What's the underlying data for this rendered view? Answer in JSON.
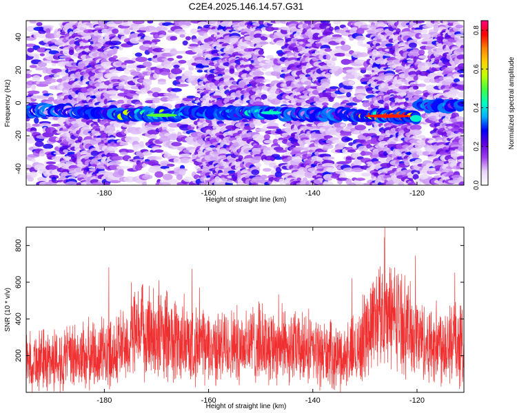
{
  "title": "C2E4.2025.146.14.57.G31",
  "chart_data": [
    {
      "type": "heatmap",
      "xlabel": "Height of straight line (km)",
      "ylabel": "Frequency (Hz)",
      "xlim": [
        -195,
        -111
      ],
      "ylim": [
        -50,
        50
      ],
      "xticks": [
        -180,
        -160,
        -140,
        -120
      ],
      "xtick_labels": [
        "-180",
        "-160",
        "-140",
        "-120"
      ],
      "yticks": [
        -40,
        -20,
        0,
        20,
        40
      ],
      "ytick_labels": [
        "-40",
        "-20",
        "0",
        "20",
        "40"
      ],
      "colorbar": {
        "label": "Normalized spectral amplitude",
        "range": [
          0.0,
          0.85
        ],
        "ticks": [
          0.0,
          0.2,
          0.4,
          0.6,
          0.8
        ],
        "tick_labels": [
          "0.0",
          "0.2",
          "0.4",
          "0.6",
          "0.8"
        ],
        "colors": [
          "#ffffff",
          "#e8d4f8",
          "#a040f0",
          "#6000e0",
          "#0000ff",
          "#00b0ff",
          "#00ffc0",
          "#40ff40",
          "#c0ff00",
          "#ffd000",
          "#ff8000",
          "#ff0000",
          "#ff0080"
        ]
      },
      "band": {
        "center_freq_hz": -7,
        "segments": [
          {
            "x0": -195,
            "x1": -185,
            "freq": -5,
            "amp": 0.12
          },
          {
            "x0": -185,
            "x1": -178,
            "freq": -6,
            "amp": 0.3
          },
          {
            "x0": -178,
            "x1": -165,
            "freq": -7,
            "amp": 0.55
          },
          {
            "x0": -165,
            "x1": -155,
            "freq": -6,
            "amp": 0.35
          },
          {
            "x0": -155,
            "x1": -146,
            "freq": -6,
            "amp": 0.45
          },
          {
            "x0": -146,
            "x1": -132,
            "freq": -7,
            "amp": 0.2
          },
          {
            "x0": -132,
            "x1": -120,
            "freq": -8,
            "amp": 0.8
          },
          {
            "x0": -120,
            "x1": -111,
            "freq": -2,
            "amp": 0.35
          }
        ]
      }
    },
    {
      "type": "line",
      "xlabel": "Height of straight line (km)",
      "ylabel": "SNR (10 * v/v)",
      "xlim": [
        -195,
        -111
      ],
      "ylim": [
        0,
        900
      ],
      "xticks": [
        -180,
        -160,
        -140,
        -120
      ],
      "xtick_labels": [
        "-180",
        "-160",
        "-140",
        "-120"
      ],
      "yticks": [
        200,
        400,
        600,
        800
      ],
      "ytick_labels": [
        "200",
        "400",
        "600",
        "800"
      ],
      "color": "#f03030",
      "envelope": [
        {
          "x": -195,
          "mean": 170,
          "spread": 170
        },
        {
          "x": -188,
          "mean": 180,
          "spread": 190
        },
        {
          "x": -180,
          "mean": 210,
          "spread": 210
        },
        {
          "x": -176,
          "mean": 260,
          "spread": 220
        },
        {
          "x": -172,
          "mean": 340,
          "spread": 280
        },
        {
          "x": -168,
          "mean": 300,
          "spread": 280
        },
        {
          "x": -164,
          "mean": 260,
          "spread": 220
        },
        {
          "x": -158,
          "mean": 240,
          "spread": 210
        },
        {
          "x": -152,
          "mean": 270,
          "spread": 230
        },
        {
          "x": -146,
          "mean": 260,
          "spread": 220
        },
        {
          "x": -140,
          "mean": 220,
          "spread": 200
        },
        {
          "x": -134,
          "mean": 190,
          "spread": 180
        },
        {
          "x": -131,
          "mean": 250,
          "spread": 230
        },
        {
          "x": -128,
          "mean": 430,
          "spread": 300
        },
        {
          "x": -124,
          "mean": 420,
          "spread": 300
        },
        {
          "x": -121,
          "mean": 330,
          "spread": 260
        },
        {
          "x": -118,
          "mean": 260,
          "spread": 220
        },
        {
          "x": -114,
          "mean": 280,
          "spread": 260
        },
        {
          "x": -111,
          "mean": 250,
          "spread": 240
        }
      ]
    }
  ]
}
